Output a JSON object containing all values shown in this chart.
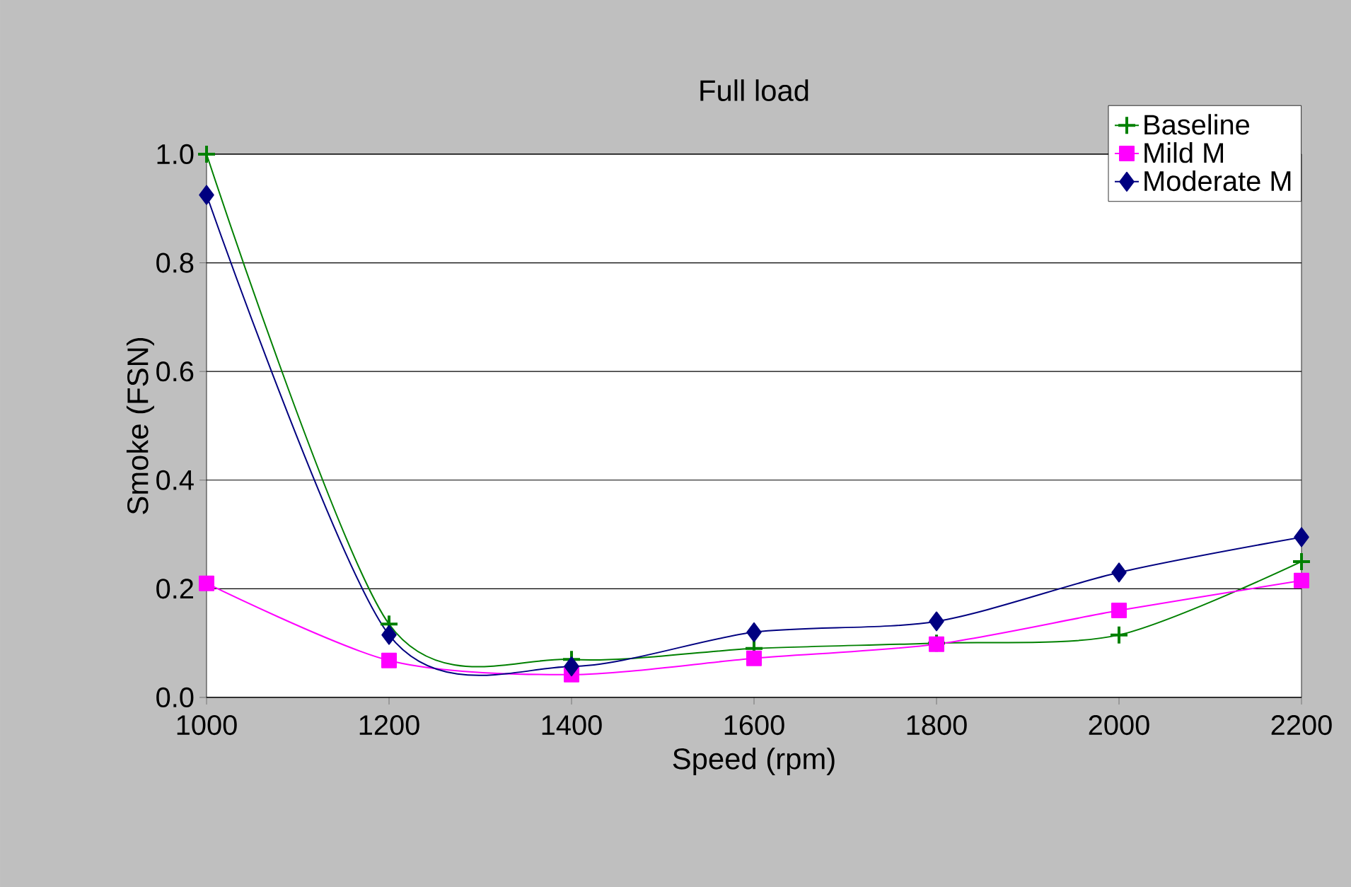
{
  "chart_data": {
    "type": "line",
    "title": "Full load",
    "xlabel": "Speed (rpm)",
    "ylabel": "Smoke (FSN)",
    "x": [
      1000,
      1200,
      1400,
      1600,
      1800,
      2000,
      2200
    ],
    "series": [
      {
        "name": "Baseline",
        "color": "#008000",
        "marker": "cross",
        "values": [
          1.0,
          0.135,
          0.07,
          0.09,
          0.1,
          0.115,
          0.25
        ]
      },
      {
        "name": "Mild M",
        "color": "#ff00ff",
        "marker": "square",
        "values": [
          0.21,
          0.068,
          0.042,
          0.072,
          0.098,
          0.16,
          0.215
        ]
      },
      {
        "name": "Moderate M",
        "color": "#000080",
        "marker": "diamond",
        "values": [
          0.925,
          0.115,
          0.057,
          0.12,
          0.14,
          0.23,
          0.295
        ]
      }
    ],
    "xlim": [
      1000,
      2200
    ],
    "xticks": [
      1000,
      1200,
      1400,
      1600,
      1800,
      2000,
      2200
    ],
    "ylim": [
      0,
      1.0
    ],
    "yticks": [
      {
        "value": 0,
        "label": "0.0"
      },
      0.2,
      0.4,
      0.6,
      0.8,
      {
        "value": 1.0,
        "label": "1.0"
      }
    ],
    "grid": "y",
    "legend": "top right",
    "line_style": "solid"
  }
}
